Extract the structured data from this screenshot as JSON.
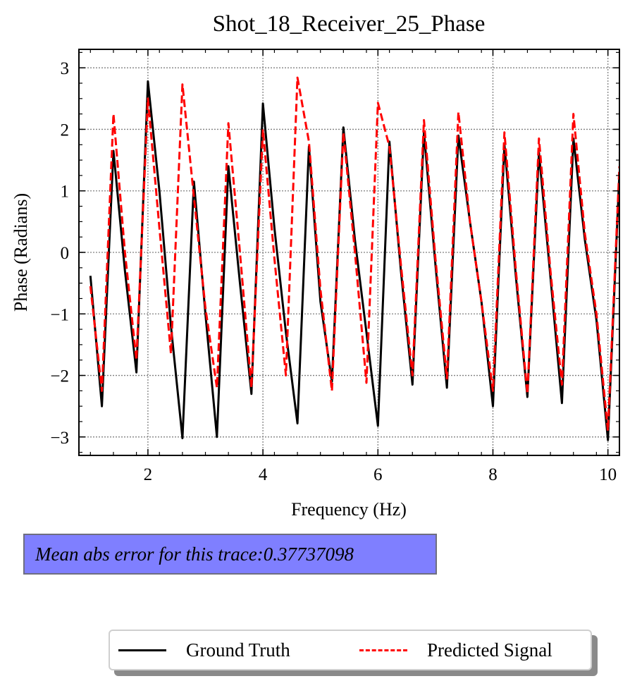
{
  "chart_data": {
    "type": "line",
    "title": "Shot_18_Receiver_25_Phase",
    "xlabel": "Frequency (Hz)",
    "ylabel": "Phase (Radians)",
    "xlim": [
      0.8,
      10.2
    ],
    "ylim": [
      -3.3,
      3.3
    ],
    "xticks": [
      2,
      4,
      6,
      8,
      10
    ],
    "yticks": [
      -3,
      -2,
      -1,
      0,
      1,
      2,
      3
    ],
    "xtick_labels": [
      "2",
      "4",
      "6",
      "8",
      "10"
    ],
    "ytick_labels": [
      "−3",
      "−2",
      "−1",
      "0",
      "1",
      "2",
      "3"
    ],
    "grid": true,
    "legend_position": "bottom",
    "series": [
      {
        "name": "Ground Truth",
        "color": "#000000",
        "style": "solid",
        "x": [
          1.0,
          1.2,
          1.4,
          1.6,
          1.8,
          2.0,
          2.2,
          2.4,
          2.6,
          2.8,
          3.0,
          3.2,
          3.4,
          3.6,
          3.8,
          4.0,
          4.2,
          4.4,
          4.6,
          4.8,
          5.0,
          5.2,
          5.4,
          5.6,
          5.8,
          6.0,
          6.2,
          6.4,
          6.6,
          6.8,
          7.0,
          7.2,
          7.4,
          7.6,
          7.8,
          8.0,
          8.2,
          8.4,
          8.6,
          8.8,
          9.0,
          9.2,
          9.4,
          9.6,
          9.8,
          10.0,
          10.2
        ],
        "values": [
          -0.38,
          -2.5,
          1.65,
          -0.3,
          -1.95,
          2.78,
          1.0,
          -1.2,
          -3.02,
          1.15,
          -1.0,
          -3.0,
          1.4,
          -0.5,
          -2.3,
          2.42,
          0.4,
          -1.3,
          -2.78,
          1.72,
          -0.8,
          -2.1,
          2.03,
          0.2,
          -1.3,
          -2.82,
          1.8,
          -0.3,
          -2.15,
          1.95,
          -0.2,
          -2.2,
          1.9,
          0.5,
          -0.8,
          -2.5,
          1.75,
          -0.4,
          -2.35,
          1.62,
          -0.4,
          -2.45,
          1.85,
          0.2,
          -1.1,
          -3.05,
          1.3
        ]
      },
      {
        "name": "Predicted Signal",
        "color": "#ff0000",
        "style": "dashed",
        "x": [
          1.0,
          1.2,
          1.4,
          1.6,
          1.8,
          2.0,
          2.2,
          2.4,
          2.6,
          2.8,
          3.0,
          3.2,
          3.4,
          3.6,
          3.8,
          4.0,
          4.2,
          4.4,
          4.6,
          4.8,
          5.0,
          5.2,
          5.4,
          5.6,
          5.8,
          6.0,
          6.2,
          6.4,
          6.6,
          6.8,
          7.0,
          7.2,
          7.4,
          7.6,
          7.8,
          8.0,
          8.2,
          8.4,
          8.6,
          8.8,
          9.0,
          9.2,
          9.4,
          9.6,
          9.8,
          10.0,
          10.2
        ],
        "values": [
          -0.55,
          -2.25,
          2.25,
          0.0,
          -1.75,
          2.5,
          0.4,
          -1.65,
          2.73,
          0.9,
          -0.9,
          -2.2,
          2.1,
          0.0,
          -2.2,
          2.0,
          -0.1,
          -2.0,
          2.84,
          1.8,
          -0.6,
          -2.25,
          1.95,
          0.0,
          -2.12,
          2.43,
          1.72,
          -0.2,
          -2.0,
          2.15,
          -0.1,
          -2.05,
          2.28,
          0.5,
          -0.8,
          -2.25,
          1.95,
          -0.3,
          -2.3,
          1.85,
          -0.3,
          -2.15,
          2.25,
          0.3,
          -1.0,
          -2.9,
          1.4
        ]
      }
    ]
  },
  "annotation": {
    "text": "Mean abs error for this trace:0.37737098"
  },
  "legend": {
    "items": [
      {
        "label": "Ground Truth"
      },
      {
        "label": "Predicted Signal"
      }
    ]
  }
}
